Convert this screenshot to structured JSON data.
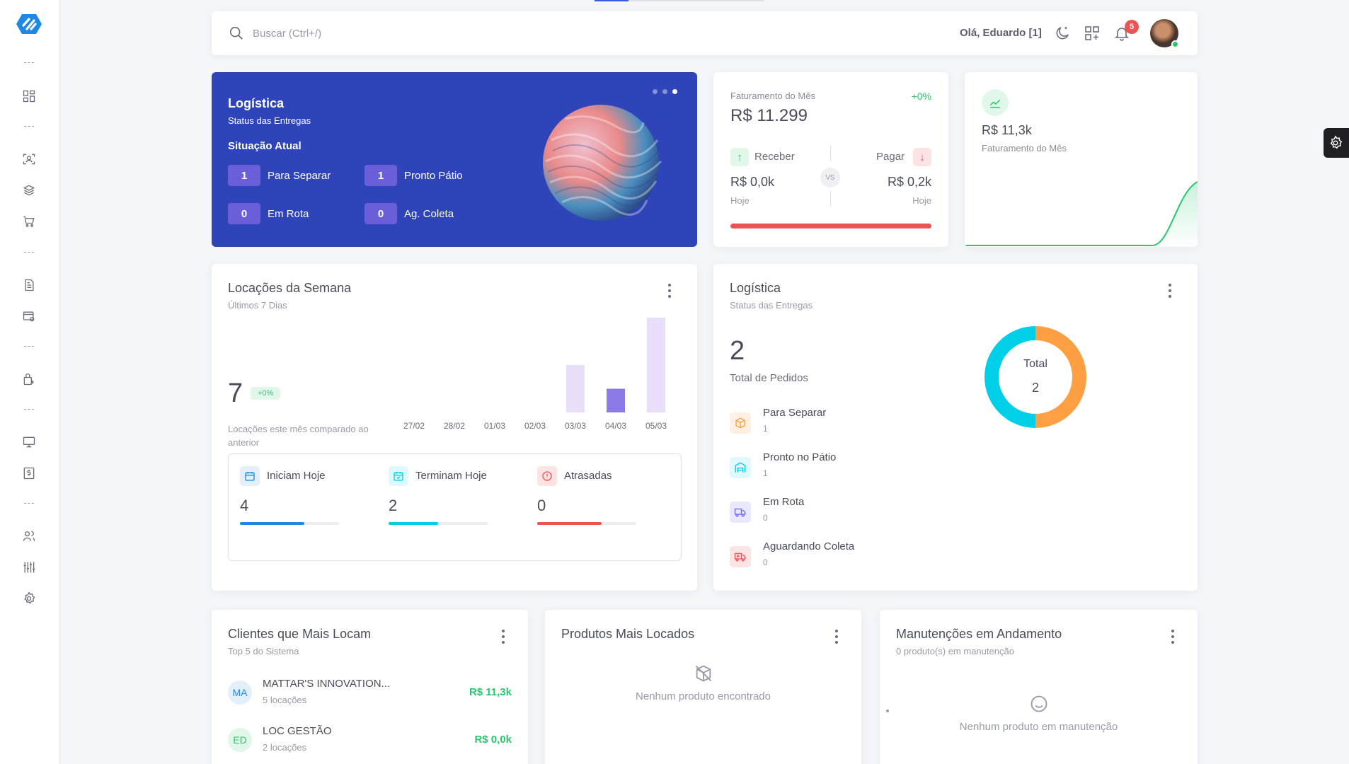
{
  "search": {
    "placeholder": "Buscar (Ctrl+/)"
  },
  "header": {
    "greeting": "Olá, Eduardo [1]",
    "notifications": "5"
  },
  "hero": {
    "title": "Logística",
    "subtitle": "Status das Entregas",
    "situation": "Situação Atual",
    "stats": [
      {
        "value": "1",
        "label": "Para Separar"
      },
      {
        "value": "1",
        "label": "Pronto Pátio"
      },
      {
        "value": "0",
        "label": "Em Rota"
      },
      {
        "value": "0",
        "label": "Ag. Coleta"
      }
    ]
  },
  "faturamento": {
    "label": "Faturamento do Mês",
    "pct": "+0%",
    "value": "R$ 11.299",
    "receber_label": "Receber",
    "pagar_label": "Pagar",
    "receber_value": "R$ 0,0k",
    "pagar_value": "R$ 0,2k",
    "hoje_left": "Hoje",
    "hoje_right": "Hoje",
    "vs": "VS"
  },
  "fat_chart": {
    "value": "R$ 11,3k",
    "label": "Faturamento do Mês"
  },
  "locacoes": {
    "title": "Locações da Semana",
    "subtitle": "Últimos 7 Dias",
    "count": "7",
    "pct": "+0%",
    "caption": "Locações este mês comparado ao anterior",
    "kebab": "more-options",
    "summary": [
      {
        "label": "Iniciam Hoje",
        "value": "4",
        "progress": 0.65,
        "color": "#1e88e5"
      },
      {
        "label": "Terminam Hoje",
        "value": "2",
        "progress": 0.5,
        "color": "#00cfe8"
      },
      {
        "label": "Atrasadas",
        "value": "0",
        "progress": 0.65,
        "color": "#ea5455"
      }
    ]
  },
  "chart_data": {
    "type": "bar",
    "categories": [
      "27/02",
      "28/02",
      "01/03",
      "02/03",
      "03/03",
      "04/03",
      "05/03"
    ],
    "values": [
      0,
      0,
      0,
      0,
      2,
      1,
      4
    ],
    "colors": [
      "#e9dffb",
      "#e9dffb",
      "#e9dffb",
      "#e9dffb",
      "#e9dffb",
      "#8c7ae6",
      "#e9dffb"
    ]
  },
  "logistica": {
    "title": "Logística",
    "subtitle": "Status das Entregas",
    "total": "2",
    "total_label": "Total de Pedidos",
    "donut_label": "Total",
    "donut_value": "2",
    "items": [
      {
        "label": "Para Separar",
        "value": "1",
        "color": "#ff9f43",
        "bg": "#fff0e1",
        "icon": "box-icon"
      },
      {
        "label": "Pronto no Pátio",
        "value": "1",
        "color": "#00cfe8",
        "bg": "#e0f9fc",
        "icon": "warehouse-icon"
      },
      {
        "label": "Em Rota",
        "value": "0",
        "color": "#7367f0",
        "bg": "#eae8fd",
        "icon": "truck-icon"
      },
      {
        "label": "Aguardando Coleta",
        "value": "0",
        "color": "#ea5455",
        "bg": "#fce4e4",
        "icon": "truck-return-icon"
      }
    ],
    "donut": [
      {
        "value": 1,
        "color": "#ff9f43"
      },
      {
        "value": 1,
        "color": "#00cfe8"
      }
    ]
  },
  "clientes": {
    "title": "Clientes que Mais Locam",
    "subtitle": "Top 5 do Sistema",
    "rows": [
      {
        "initials": "MA",
        "name": "MATTAR'S INNOVATION...",
        "count": "5 locações",
        "value": "R$ 11,3k",
        "color": "#1e88e5",
        "bg": "#e3f0fc"
      },
      {
        "initials": "ED",
        "name": "LOC GESTÃO",
        "count": "2 locações",
        "value": "R$ 0,0k",
        "color": "#28c76f",
        "bg": "#e1f7ea"
      }
    ]
  },
  "produtos": {
    "title": "Produtos Mais Locados",
    "empty": "Nenhum produto encontrado"
  },
  "manutencoes": {
    "title": "Manutenções em Andamento",
    "subtitle": "0 produto(s) em manutenção",
    "empty": "Nenhum produto em manutenção"
  }
}
